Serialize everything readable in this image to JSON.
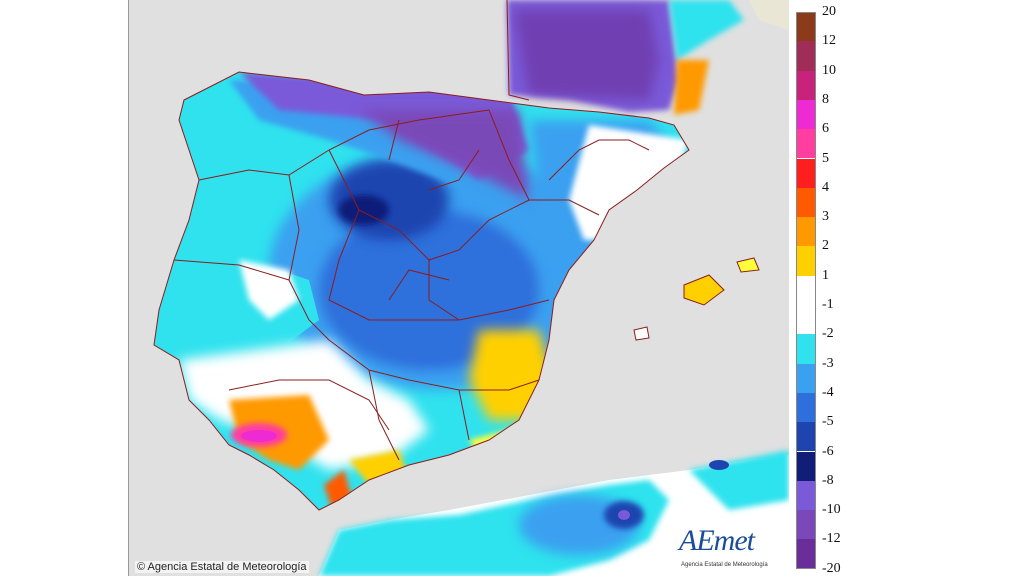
{
  "map": {
    "copyright": "© Agencia Estatal de Meteorología",
    "logo": {
      "text": "AEmet",
      "subtitle": "Agencia Estatal de Meteorología",
      "icon": "aemet-logo-icon"
    },
    "colors": {
      "sea": "#e0e0e0",
      "land_outside": "#eae6d6",
      "border": "#8b1d1d",
      "zero": "#ffffff"
    }
  },
  "legend": {
    "bins": [
      {
        "label": "20",
        "color": "#8b3a1a"
      },
      {
        "label": "12",
        "color": "#a02c58"
      },
      {
        "label": "10",
        "color": "#c8237a"
      },
      {
        "label": "8",
        "color": "#ee2ad2"
      },
      {
        "label": "6",
        "color": "#ff3ea0"
      },
      {
        "label": "5",
        "color": "#ff1f1f"
      },
      {
        "label": "4",
        "color": "#ff5a00"
      },
      {
        "label": "3",
        "color": "#ff9900"
      },
      {
        "label": "2",
        "color": "#ffd000"
      },
      {
        "label": "1",
        "color": "#ffff3a"
      },
      {
        "label": "-1",
        "color": "#ffffff"
      },
      {
        "label": "-2",
        "color": "#2fe2ee"
      },
      {
        "label": "-3",
        "color": "#3aa0f0"
      },
      {
        "label": "-4",
        "color": "#2e6fdc"
      },
      {
        "label": "-5",
        "color": "#1e44b0"
      },
      {
        "label": "-6",
        "color": "#101e78"
      },
      {
        "label": "-8",
        "color": "#7a5ad8"
      },
      {
        "label": "-10",
        "color": "#7a48b8"
      },
      {
        "label": "-12",
        "color": "#6a2e9a"
      },
      {
        "label": "-20",
        "color": "#5a1e84"
      }
    ]
  }
}
